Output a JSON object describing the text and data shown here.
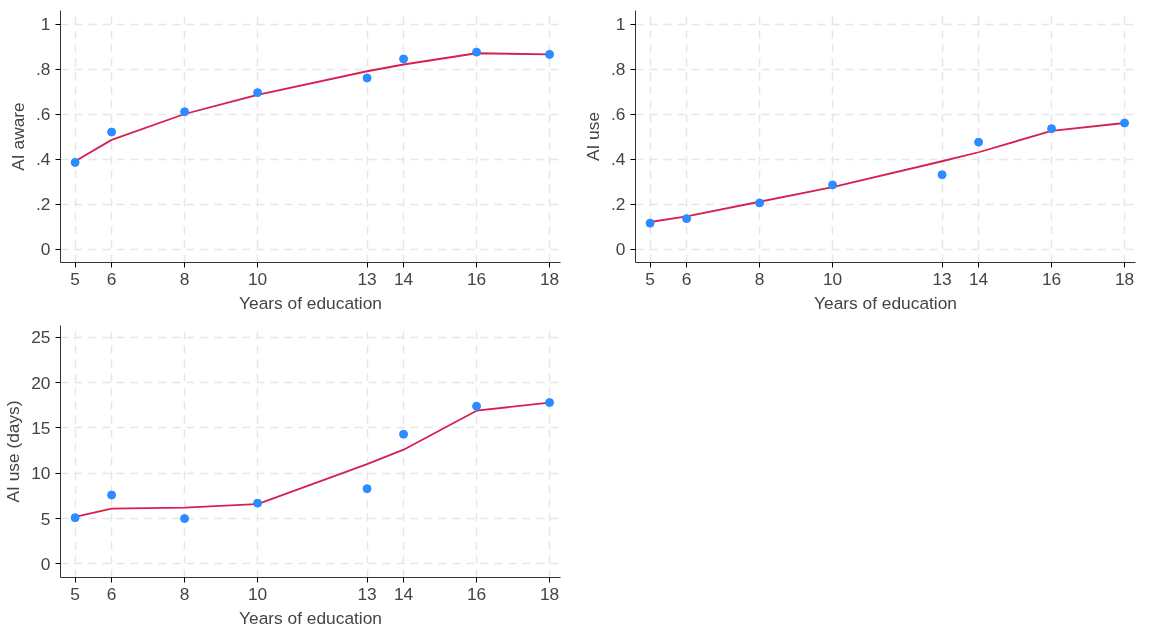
{
  "chart_data": [
    {
      "type": "scatter",
      "xlabel": "Years of education",
      "ylabel": "AI aware",
      "xlim": [
        4.6,
        18.3
      ],
      "ylim": [
        -0.06,
        1.06
      ],
      "xticks": [
        5,
        6,
        8,
        10,
        13,
        14,
        16,
        18
      ],
      "yticks": [
        {
          "value": 0,
          "label": "0"
        },
        {
          "value": 0.2,
          "label": ".2"
        },
        {
          "value": 0.4,
          "label": ".4"
        },
        {
          "value": 0.6,
          "label": ".6"
        },
        {
          "value": 0.8,
          "label": ".8"
        },
        {
          "value": 1,
          "label": "1"
        }
      ],
      "grid": true,
      "series": [
        {
          "color": "#2b8cff",
          "marker": "circle",
          "x": [
            5,
            6,
            8,
            10,
            13,
            14,
            16,
            18
          ],
          "values": [
            0.385,
            0.52,
            0.61,
            0.695,
            0.76,
            0.845,
            0.875,
            0.865
          ]
        },
        {
          "type": "line",
          "color": "#d6204f",
          "line_style": "solid",
          "x": [
            5,
            6,
            8,
            10,
            13,
            14,
            16,
            18
          ],
          "values": [
            0.39,
            0.485,
            0.6,
            0.685,
            0.79,
            0.82,
            0.87,
            0.865
          ]
        }
      ]
    },
    {
      "type": "scatter",
      "xlabel": "Years of education",
      "ylabel": "AI use",
      "xlim": [
        4.6,
        18.3
      ],
      "ylim": [
        -0.06,
        1.06
      ],
      "xticks": [
        5,
        6,
        8,
        10,
        13,
        14,
        16,
        18
      ],
      "yticks": [
        {
          "value": 0,
          "label": "0"
        },
        {
          "value": 0.2,
          "label": ".2"
        },
        {
          "value": 0.4,
          "label": ".4"
        },
        {
          "value": 0.6,
          "label": ".6"
        },
        {
          "value": 0.8,
          "label": ".8"
        },
        {
          "value": 1,
          "label": "1"
        }
      ],
      "grid": true,
      "series": [
        {
          "color": "#2b8cff",
          "marker": "circle",
          "x": [
            5,
            6,
            8,
            10,
            13,
            14,
            16,
            18
          ],
          "values": [
            0.115,
            0.135,
            0.205,
            0.285,
            0.33,
            0.475,
            0.535,
            0.56
          ]
        },
        {
          "type": "line",
          "color": "#d6204f",
          "line_style": "solid",
          "x": [
            5,
            6,
            8,
            10,
            13,
            14,
            16,
            18
          ],
          "values": [
            0.12,
            0.145,
            0.21,
            0.275,
            0.39,
            0.43,
            0.525,
            0.56
          ]
        }
      ]
    },
    {
      "type": "scatter",
      "xlabel": "Years of education",
      "ylabel": "AI use (days)",
      "xlim": [
        4.6,
        18.3
      ],
      "ylim": [
        -1.5,
        26.3
      ],
      "xticks": [
        5,
        6,
        8,
        10,
        13,
        14,
        16,
        18
      ],
      "yticks": [
        0,
        5,
        10,
        15,
        20,
        25
      ],
      "grid": true,
      "series": [
        {
          "color": "#2b8cff",
          "marker": "circle",
          "x": [
            5,
            6,
            8,
            10,
            13,
            14,
            16,
            18
          ],
          "values": [
            5.1,
            7.6,
            5.0,
            6.7,
            8.3,
            14.3,
            17.4,
            17.8
          ]
        },
        {
          "type": "line",
          "color": "#d6204f",
          "line_style": "solid",
          "x": [
            5,
            6,
            8,
            10,
            13,
            14,
            16,
            18
          ],
          "values": [
            5.2,
            6.1,
            6.2,
            6.6,
            11.0,
            12.6,
            16.9,
            17.8
          ]
        }
      ]
    }
  ]
}
